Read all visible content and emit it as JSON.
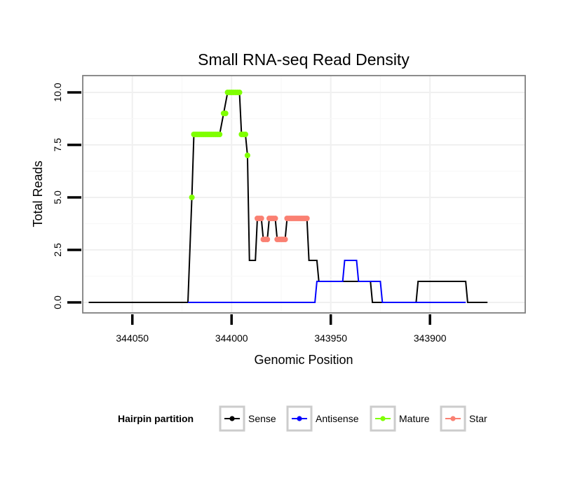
{
  "chart_data": {
    "type": "line",
    "title": "Small RNA-seq Read Density",
    "xlabel": "Genomic Position",
    "ylabel": "Total Reads",
    "xlim": [
      344075,
      343852
    ],
    "x_reversed": true,
    "ylim": [
      -0.5,
      10.8
    ],
    "x_ticks": [
      344050,
      344000,
      343950,
      343900
    ],
    "x_tick_labels": [
      "344050",
      "344000",
      "343950",
      "343900"
    ],
    "y_ticks": [
      0,
      2.5,
      5,
      7.5,
      10
    ],
    "y_tick_labels": [
      "0.0",
      "2.5",
      "5.0",
      "7.5",
      "10.0"
    ],
    "grid": true,
    "legend": {
      "title": "Hairpin partition",
      "position": "bottom",
      "entries": [
        {
          "name": "Sense",
          "color": "#000000"
        },
        {
          "name": "Antisense",
          "color": "#0000ff"
        },
        {
          "name": "Mature",
          "color": "#7fff00"
        },
        {
          "name": "Star",
          "color": "#fa8072"
        }
      ]
    },
    "series": [
      {
        "name": "Sense",
        "color": "#000000",
        "style": "line",
        "points": [
          [
            344072,
            0
          ],
          [
            344022,
            0
          ],
          [
            344020,
            5
          ],
          [
            344019,
            8
          ],
          [
            344006,
            8
          ],
          [
            344004,
            9
          ],
          [
            344002,
            10
          ],
          [
            343996,
            10
          ],
          [
            343995,
            8
          ],
          [
            343993,
            8
          ],
          [
            343992,
            7
          ],
          [
            343991,
            2
          ],
          [
            343988,
            2
          ],
          [
            343987,
            4
          ],
          [
            343985,
            4
          ],
          [
            343984,
            3
          ],
          [
            343982,
            3
          ],
          [
            343981,
            4
          ],
          [
            343978,
            4
          ],
          [
            343977,
            3
          ],
          [
            343973,
            3
          ],
          [
            343972,
            4
          ],
          [
            343962,
            4
          ],
          [
            343961,
            2
          ],
          [
            343957,
            2
          ],
          [
            343956,
            1
          ],
          [
            343930,
            1
          ],
          [
            343929,
            0
          ],
          [
            343907,
            0
          ],
          [
            343906,
            1
          ],
          [
            343882,
            1
          ],
          [
            343881,
            0
          ],
          [
            343871,
            0
          ]
        ]
      },
      {
        "name": "Antisense",
        "color": "#0000ff",
        "style": "line",
        "points": [
          [
            344022,
            0
          ],
          [
            343958,
            0
          ],
          [
            343957,
            1
          ],
          [
            343944,
            1
          ],
          [
            343943,
            2
          ],
          [
            343937,
            2
          ],
          [
            343936,
            1
          ],
          [
            343925,
            1
          ],
          [
            343924,
            0
          ],
          [
            343882,
            0
          ]
        ]
      },
      {
        "name": "Mature",
        "color": "#7fff00",
        "style": "points",
        "points": [
          [
            344020,
            5
          ],
          [
            344019,
            8
          ],
          [
            344018,
            8
          ],
          [
            344017,
            8
          ],
          [
            344016,
            8
          ],
          [
            344015,
            8
          ],
          [
            344014,
            8
          ],
          [
            344013,
            8
          ],
          [
            344012,
            8
          ],
          [
            344011,
            8
          ],
          [
            344010,
            8
          ],
          [
            344009,
            8
          ],
          [
            344008,
            8
          ],
          [
            344007,
            8
          ],
          [
            344006,
            8
          ],
          [
            344004,
            9
          ],
          [
            344003,
            9
          ],
          [
            344002,
            10
          ],
          [
            344001,
            10
          ],
          [
            344000,
            10
          ],
          [
            343999,
            10
          ],
          [
            343998,
            10
          ],
          [
            343997,
            10
          ],
          [
            343996,
            10
          ],
          [
            343995,
            8
          ],
          [
            343994,
            8
          ],
          [
            343993,
            8
          ],
          [
            343992,
            7
          ]
        ]
      },
      {
        "name": "Star",
        "color": "#fa8072",
        "style": "points",
        "points": [
          [
            343987,
            4
          ],
          [
            343986,
            4
          ],
          [
            343985,
            4
          ],
          [
            343984,
            3
          ],
          [
            343983,
            3
          ],
          [
            343982,
            3
          ],
          [
            343981,
            4
          ],
          [
            343980,
            4
          ],
          [
            343979,
            4
          ],
          [
            343978,
            4
          ],
          [
            343977,
            3
          ],
          [
            343976,
            3
          ],
          [
            343975,
            3
          ],
          [
            343974,
            3
          ],
          [
            343973,
            3
          ],
          [
            343972,
            4
          ],
          [
            343971,
            4
          ],
          [
            343970,
            4
          ],
          [
            343969,
            4
          ],
          [
            343968,
            4
          ],
          [
            343967,
            4
          ],
          [
            343966,
            4
          ],
          [
            343965,
            4
          ],
          [
            343964,
            4
          ],
          [
            343963,
            4
          ],
          [
            343962,
            4
          ]
        ]
      }
    ]
  }
}
